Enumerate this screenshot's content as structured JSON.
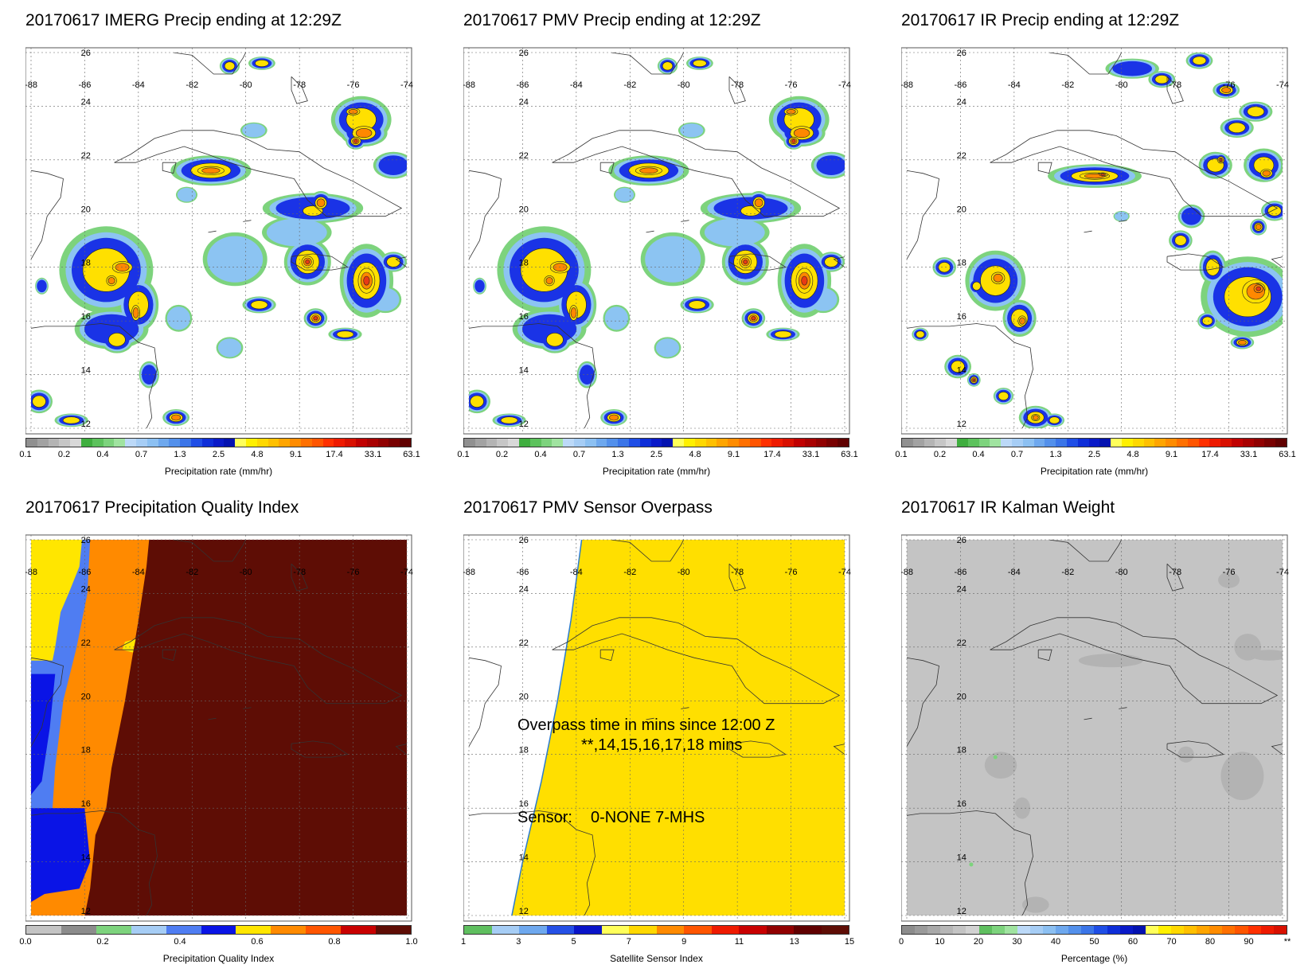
{
  "colors": {
    "white": "#ffffff",
    "precip_green": "#7dd37d",
    "precip_lightblue": "#8cc4f2",
    "precip_blue": "#1a33e6",
    "precip_yellow": "#ffe000",
    "precip_orange": "#ff8800",
    "precip_red": "#e83a14",
    "pqi_yellow": "#ffe600",
    "pqi_blue": "#0a14e6",
    "pqi_lightblue": "#4f7df2",
    "pqi_orange": "#ff8a00",
    "pqi_darkred": "#5e0d05",
    "overpass_yellow": "#ffdf00",
    "kalman_gray": "#c4c4c4"
  },
  "map": {
    "lon_labels": [
      "-88",
      "-86",
      "-84",
      "-82",
      "-80",
      "-78",
      "-76",
      "-74"
    ],
    "lat_labels": [
      "26",
      "24",
      "22",
      "20",
      "18",
      "16",
      "14",
      "12"
    ]
  },
  "panels": [
    {
      "title": "20170617 IMERG Precip ending at 12:29Z",
      "fill": "precip",
      "colorbar": {
        "labels": [
          "0.1",
          "0.2",
          "0.4",
          "0.7",
          "1.3",
          "2.5",
          "4.8",
          "9.1",
          "17.4",
          "33.1",
          "63.1"
        ],
        "title": "Precipitation rate (mm/hr)",
        "colors": [
          "#909090",
          "#a2a2a2",
          "#b4b4b4",
          "#c6c6c6",
          "#d8d8d8",
          "#3fae3f",
          "#5dc25d",
          "#7dd37d",
          "#a0e3a0",
          "#bcd9f8",
          "#a6cdf5",
          "#8cc0f2",
          "#6ea8ee",
          "#5390eb",
          "#3b75e8",
          "#1f4ee6",
          "#0e2ed8",
          "#0a1ac8",
          "#0412b0",
          "#ffff5a",
          "#fff000",
          "#ffd800",
          "#ffc000",
          "#ffa500",
          "#ff8c00",
          "#ff7000",
          "#ff5500",
          "#ff3000",
          "#ee1a00",
          "#d81000",
          "#c00000",
          "#a80000",
          "#900000",
          "#780000",
          "#600000"
        ]
      }
    },
    {
      "title": "20170617 PMV Precip ending at 12:29Z",
      "fill": "precip",
      "colorbar": {
        "labels": [
          "0.1",
          "0.2",
          "0.4",
          "0.7",
          "1.3",
          "2.5",
          "4.8",
          "9.1",
          "17.4",
          "33.1",
          "63.1"
        ],
        "title": "Precipitation rate (mm/hr)",
        "colors": [
          "#909090",
          "#a2a2a2",
          "#b4b4b4",
          "#c6c6c6",
          "#d8d8d8",
          "#3fae3f",
          "#5dc25d",
          "#7dd37d",
          "#a0e3a0",
          "#bcd9f8",
          "#a6cdf5",
          "#8cc0f2",
          "#6ea8ee",
          "#5390eb",
          "#3b75e8",
          "#1f4ee6",
          "#0e2ed8",
          "#0a1ac8",
          "#0412b0",
          "#ffff5a",
          "#fff000",
          "#ffd800",
          "#ffc000",
          "#ffa500",
          "#ff8c00",
          "#ff7000",
          "#ff5500",
          "#ff3000",
          "#ee1a00",
          "#d81000",
          "#c00000",
          "#a80000",
          "#900000",
          "#780000",
          "#600000"
        ]
      }
    },
    {
      "title": "20170617 IR Precip ending at 12:29Z",
      "fill": "precip",
      "colorbar": {
        "labels": [
          "0.1",
          "0.2",
          "0.4",
          "0.7",
          "1.3",
          "2.5",
          "4.8",
          "9.1",
          "17.4",
          "33.1",
          "63.1"
        ],
        "title": "Precipitation rate (mm/hr)",
        "colors": [
          "#909090",
          "#a2a2a2",
          "#b4b4b4",
          "#c6c6c6",
          "#d8d8d8",
          "#3fae3f",
          "#5dc25d",
          "#7dd37d",
          "#a0e3a0",
          "#bcd9f8",
          "#a6cdf5",
          "#8cc0f2",
          "#6ea8ee",
          "#5390eb",
          "#3b75e8",
          "#1f4ee6",
          "#0e2ed8",
          "#0a1ac8",
          "#0412b0",
          "#ffff5a",
          "#fff000",
          "#ffd800",
          "#ffc000",
          "#ffa500",
          "#ff8c00",
          "#ff7000",
          "#ff5500",
          "#ff3000",
          "#ee1a00",
          "#d81000",
          "#c00000",
          "#a80000",
          "#900000",
          "#780000",
          "#600000"
        ]
      }
    },
    {
      "title": "20170617 Precipitation Quality Index",
      "fill": "pqi",
      "colorbar": {
        "labels": [
          "0.0",
          "0.2",
          "0.4",
          "0.6",
          "0.8",
          "1.0"
        ],
        "title": "Precipitation Quality Index",
        "colors": [
          "#c4c4c4",
          "#8c8c8c",
          "#7dd37d",
          "#a6cdf5",
          "#4f7df2",
          "#0a14e6",
          "#ffe600",
          "#ff8a00",
          "#ff5500",
          "#c80000",
          "#5e0d05"
        ]
      }
    },
    {
      "title": "20170617 PMV Sensor Overpass",
      "fill": "overpass",
      "annotations": {
        "line1": "Overpass time in mins since 12:00 Z",
        "line2": "**,14,15,16,17,18 mins",
        "sensor_label": "Sensor:",
        "sensor_values": "0-NONE  7-MHS"
      },
      "colorbar": {
        "labels": [
          "1",
          "3",
          "5",
          "7",
          "9",
          "11",
          "13",
          "15"
        ],
        "title": "Satellite Sensor Index",
        "colors": [
          "#5fbf5f",
          "#a6cdf5",
          "#6ea8ee",
          "#2550e6",
          "#0a14c8",
          "#ffff5a",
          "#ffd800",
          "#ff8a00",
          "#ff5500",
          "#ee1a00",
          "#c80000",
          "#900000",
          "#600000",
          "#5e0d05"
        ]
      }
    },
    {
      "title": "20170617 IR Kalman Weight",
      "fill": "kalman",
      "colorbar": {
        "labels": [
          "0",
          "10",
          "20",
          "30",
          "40",
          "50",
          "60",
          "70",
          "80",
          "90",
          "**"
        ],
        "title": "Percentage (%)",
        "colors": [
          "#8c8c8c",
          "#9a9a9a",
          "#a8a8a8",
          "#b6b6b6",
          "#c4c4c4",
          "#d2d2d2",
          "#5fbf5f",
          "#7dd37d",
          "#a0e3a0",
          "#bcd9f8",
          "#a6cdf5",
          "#8cc0f2",
          "#6ea8ee",
          "#5390eb",
          "#3b75e8",
          "#1f4ee6",
          "#0e2ed8",
          "#0a1ac8",
          "#0412b0",
          "#ffff5a",
          "#fff000",
          "#ffd800",
          "#ffc000",
          "#ffa500",
          "#ff8c00",
          "#ff7000",
          "#ff5500",
          "#ff3000",
          "#ee1a00",
          "#d81000"
        ]
      }
    }
  ]
}
